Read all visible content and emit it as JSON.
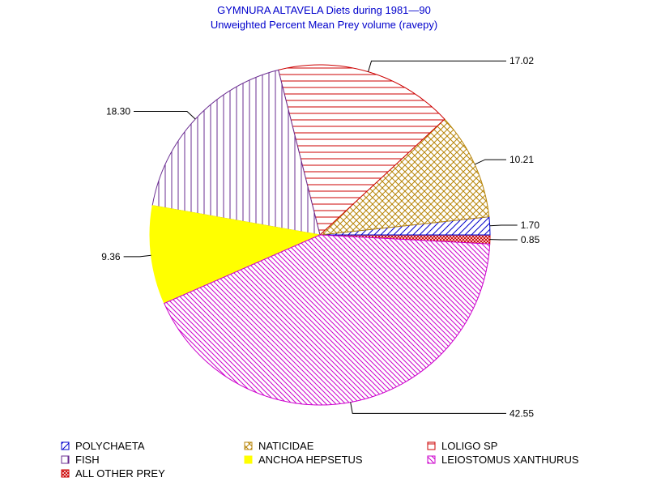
{
  "chart_data": {
    "type": "pie",
    "title": "GYMNURA ALTAVELA Diets during 1981—90",
    "subtitle": "Unweighted Percent Mean Prey volume (ravepy)",
    "slices": [
      {
        "name": "ALL OTHER PREY",
        "value": 0.85,
        "label": "0.85",
        "color": "#cc0000",
        "pattern": "crosshatch-fine"
      },
      {
        "name": "POLYCHAETA",
        "value": 1.7,
        "label": "1.70",
        "color": "#0000cc",
        "pattern": "diag-up"
      },
      {
        "name": "NATICIDAE",
        "value": 10.21,
        "label": "10.21",
        "color": "#b8860b",
        "pattern": "crosshatch"
      },
      {
        "name": "LOLIGO SP",
        "value": 17.02,
        "label": "17.02",
        "color": "#cc0000",
        "pattern": "horizontal"
      },
      {
        "name": "FISH",
        "value": 18.3,
        "label": "18.30",
        "color": "#6a2c91",
        "pattern": "vertical"
      },
      {
        "name": "ANCHOA HEPSETUS",
        "value": 9.36,
        "label": "9.36",
        "color": "#ffff00",
        "pattern": "solid"
      },
      {
        "name": "LEIOSTOMUS XANTHURUS",
        "value": 42.55,
        "label": "42.55",
        "color": "#cc00cc",
        "pattern": "diag-down"
      }
    ],
    "legend": {
      "placement": "bottom",
      "order": [
        "POLYCHAETA",
        "NATICIDAE",
        "LOLIGO SP",
        "FISH",
        "ANCHOA HEPSETUS",
        "LEIOSTOMUS XANTHURUS",
        "ALL OTHER PREY"
      ]
    }
  }
}
